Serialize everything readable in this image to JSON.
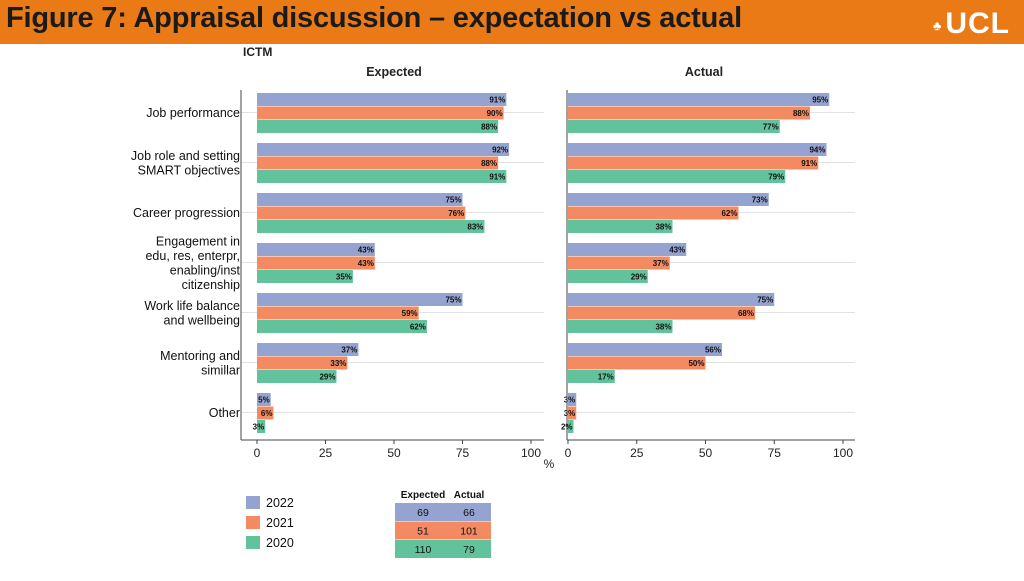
{
  "header": {
    "title": "Figure 7: Appraisal discussion – expectation vs actual",
    "logo_text": "UCL",
    "logo_mark": "♣"
  },
  "colors": {
    "header_bg": "#ea7a16",
    "s2022": "#94a3d0",
    "s2021": "#f38a61",
    "s2020": "#62c29c"
  },
  "chart_data": {
    "type": "bar",
    "orientation": "horizontal",
    "title": "ICTM",
    "panels": [
      "Expected",
      "Actual"
    ],
    "categories": [
      [
        "Job performance"
      ],
      [
        "Job role and setting",
        "SMART objectives"
      ],
      [
        "Career progression"
      ],
      [
        "Engagement in",
        "edu, res, enterpr,",
        "enabling/inst",
        "citizenship"
      ],
      [
        "Work life balance",
        "and wellbeing"
      ],
      [
        "Mentoring and",
        "simillar"
      ],
      [
        "Other"
      ]
    ],
    "series": [
      {
        "name": "2022",
        "expected": [
          91,
          92,
          75,
          43,
          75,
          37,
          5
        ],
        "actual": [
          95,
          94,
          73,
          43,
          75,
          56,
          3
        ]
      },
      {
        "name": "2021",
        "expected": [
          90,
          88,
          76,
          43,
          59,
          33,
          6
        ],
        "actual": [
          88,
          91,
          62,
          37,
          68,
          50,
          3
        ]
      },
      {
        "name": "2020",
        "expected": [
          88,
          91,
          83,
          35,
          62,
          29,
          3
        ],
        "actual": [
          77,
          79,
          38,
          29,
          38,
          17,
          2
        ]
      }
    ],
    "xlim": [
      0,
      100
    ],
    "xticks": [
      "0",
      "25",
      "50",
      "75",
      "100"
    ],
    "xlabel": "%",
    "legend_position": "bottom-left",
    "counts_table": {
      "headers": [
        "Expected",
        "Actual"
      ],
      "rows": [
        {
          "series": "2022",
          "expected": "69",
          "actual": "66"
        },
        {
          "series": "2021",
          "expected": "51",
          "actual": "101"
        },
        {
          "series": "2020",
          "expected": "110",
          "actual": "79"
        }
      ]
    }
  }
}
